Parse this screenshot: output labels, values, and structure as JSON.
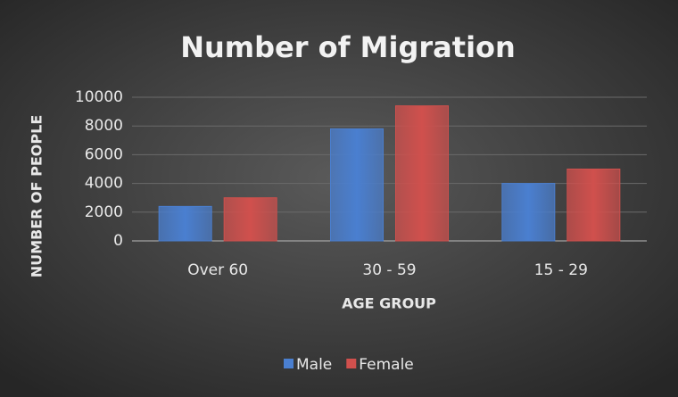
{
  "chart_data": {
    "type": "bar",
    "title": "Number of Migration",
    "x_label": "AGE GROUP",
    "y_label": "NUMBER OF PEOPLE",
    "categories": [
      "Over 60",
      "30 - 59",
      "15 - 29"
    ],
    "series": [
      {
        "name": "Male",
        "color": "#4a7fd0",
        "values": [
          2400,
          7800,
          4000
        ]
      },
      {
        "name": "Female",
        "color": "#d0504d",
        "values": [
          3000,
          9400,
          5000
        ]
      }
    ],
    "ylim": [
      0,
      10000
    ],
    "yticks": [
      0,
      2000,
      4000,
      6000,
      8000,
      10000
    ],
    "grid": true,
    "legend": "bottom"
  }
}
